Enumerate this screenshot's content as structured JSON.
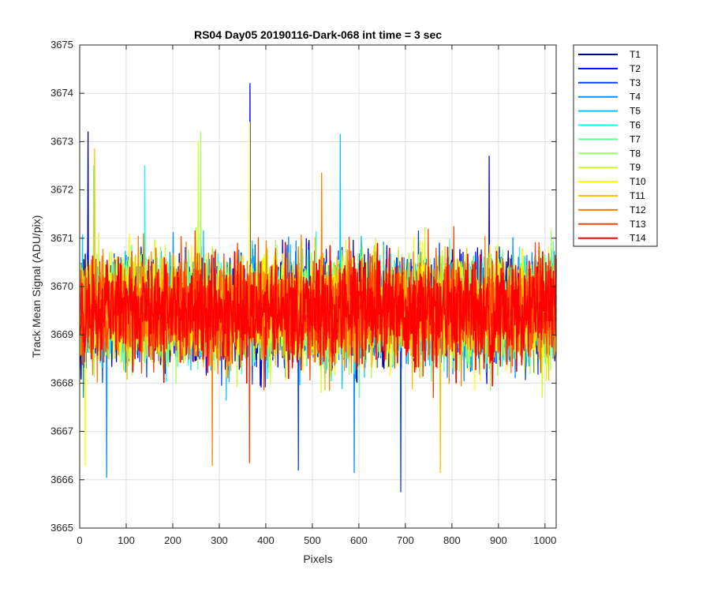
{
  "chart_data": {
    "type": "line",
    "title": "RS04 Day05 20190116-Dark-068 int time = 3 sec",
    "xlabel": "Pixels",
    "ylabel": "Track Mean Signal (ADU/pix)",
    "xlim": [
      0,
      1024
    ],
    "ylim": [
      3665,
      3675
    ],
    "xticks": [
      0,
      100,
      200,
      300,
      400,
      500,
      600,
      700,
      800,
      900,
      1000
    ],
    "yticks": [
      3665,
      3666,
      3667,
      3668,
      3669,
      3670,
      3671,
      3672,
      3673,
      3674,
      3675
    ],
    "grid": true,
    "legend_position": "outside-top-right",
    "noise": {
      "x_start": 1,
      "x_end": 1024,
      "mean": 3669.5,
      "typical_range": [
        3667,
        3672
      ]
    },
    "series": [
      {
        "name": "T1",
        "color": "#00008f",
        "spikes": [
          {
            "x": 18,
            "y": 3673.2
          }
        ]
      },
      {
        "name": "T2",
        "color": "#0000ff",
        "spikes": [
          {
            "x": 366,
            "y": 3674.2
          },
          {
            "x": 880,
            "y": 3672.7
          }
        ]
      },
      {
        "name": "T3",
        "color": "#0040ff",
        "spikes": [
          {
            "x": 690,
            "y": 3665.75
          },
          {
            "x": 470,
            "y": 3666.2
          }
        ]
      },
      {
        "name": "T4",
        "color": "#0090ff",
        "spikes": [
          {
            "x": 58,
            "y": 3666.05
          },
          {
            "x": 590,
            "y": 3666.15
          }
        ]
      },
      {
        "name": "T5",
        "color": "#00c8ff",
        "spikes": [
          {
            "x": 560,
            "y": 3673.15
          }
        ]
      },
      {
        "name": "T6",
        "color": "#10ffef",
        "spikes": [
          {
            "x": 140,
            "y": 3672.5
          }
        ]
      },
      {
        "name": "T7",
        "color": "#60ffa0",
        "spikes": [
          {
            "x": 30,
            "y": 3672.5
          }
        ]
      },
      {
        "name": "T8",
        "color": "#a0ff60",
        "spikes": [
          {
            "x": 260,
            "y": 3673.2
          }
        ]
      },
      {
        "name": "T9",
        "color": "#d0ff20",
        "spikes": [
          {
            "x": 255,
            "y": 3673.0
          }
        ]
      },
      {
        "name": "T10",
        "color": "#ffff00",
        "spikes": [
          {
            "x": 365,
            "y": 3673.4
          },
          {
            "x": 12,
            "y": 3666.3
          }
        ]
      },
      {
        "name": "T11",
        "color": "#ffc000",
        "spikes": [
          {
            "x": 775,
            "y": 3666.15
          },
          {
            "x": 32,
            "y": 3672.85
          }
        ]
      },
      {
        "name": "T12",
        "color": "#ff8000",
        "spikes": [
          {
            "x": 285,
            "y": 3666.3
          },
          {
            "x": 520,
            "y": 3672.35
          }
        ]
      },
      {
        "name": "T13",
        "color": "#ff4000",
        "spikes": [
          {
            "x": 365,
            "y": 3666.35
          },
          {
            "x": 760,
            "y": 3667.7
          }
        ]
      },
      {
        "name": "T14",
        "color": "#ff0000",
        "spikes": []
      }
    ]
  }
}
